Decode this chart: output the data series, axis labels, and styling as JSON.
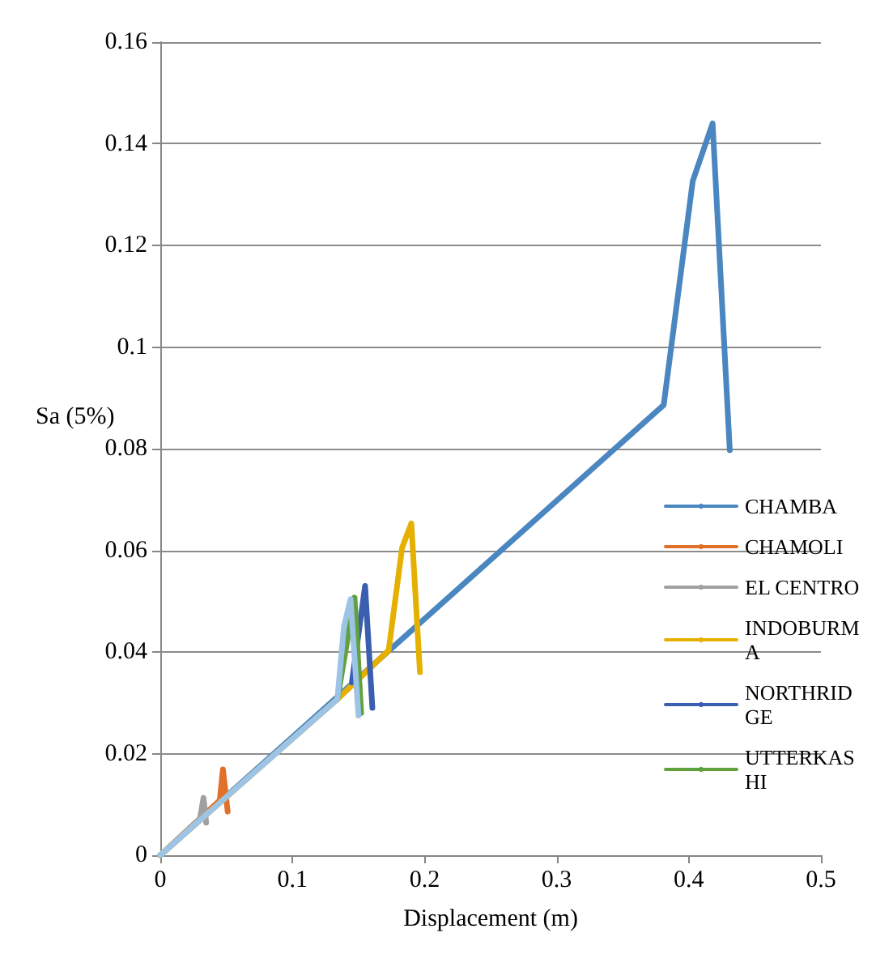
{
  "chart_data": {
    "type": "line",
    "xlabel": "Displacement (m)",
    "ylabel": "Sa (5%)",
    "xlim": [
      0,
      0.5
    ],
    "xticks": [
      0,
      0.1,
      0.2,
      0.3,
      0.4,
      0.5
    ],
    "ylim": [
      0,
      0.16
    ],
    "yticks": [
      0,
      0.02,
      0.04,
      0.06,
      0.08,
      0.1,
      0.12,
      0.14,
      0.16
    ],
    "grid": "y",
    "legend": "right",
    "marker": "none",
    "line_style": "solid",
    "series": [
      {
        "name": "CHAMBA",
        "color": "#4a86c0",
        "x": [
          0,
          0.381,
          0.403,
          0.418,
          0.431
        ],
        "values": [
          0,
          0.0886,
          0.1327,
          0.144,
          0.0797
        ]
      },
      {
        "name": "CHAMOLI",
        "color": "#e0702a",
        "x": [
          0,
          0.045,
          0.0474,
          0.051
        ],
        "values": [
          0,
          0.0108,
          0.0169,
          0.0086
        ]
      },
      {
        "name": "EL CENTRO",
        "color": "#a0a0a0",
        "x": [
          0,
          0.03,
          0.0327,
          0.0347
        ],
        "values": [
          0,
          0.0072,
          0.0113,
          0.0064
        ]
      },
      {
        "name": "INDOBURMA",
        "color": "#e6b000",
        "x": [
          0,
          0.134,
          0.1728,
          0.183,
          0.19,
          0.1965
        ],
        "values": [
          0,
          0.0307,
          0.0403,
          0.0605,
          0.0653,
          0.036
        ]
      },
      {
        "name": "NORTHRIDGE",
        "color": "#3a5fae",
        "x": [
          0.145,
          0.155,
          0.1605
        ],
        "values": [
          0.034,
          0.053,
          0.029
        ]
      },
      {
        "name": "UTTERKASHI",
        "color": "#5fa13c",
        "x": [
          0.134,
          0.147,
          0.152
        ],
        "values": [
          0.0307,
          0.0507,
          0.028
        ]
      },
      {
        "color": "#9dc3e6",
        "x": [
          0,
          0.134,
          0.139,
          0.144,
          0.15
        ],
        "values": [
          0,
          0.0307,
          0.045,
          0.0504,
          0.0275
        ]
      }
    ]
  }
}
